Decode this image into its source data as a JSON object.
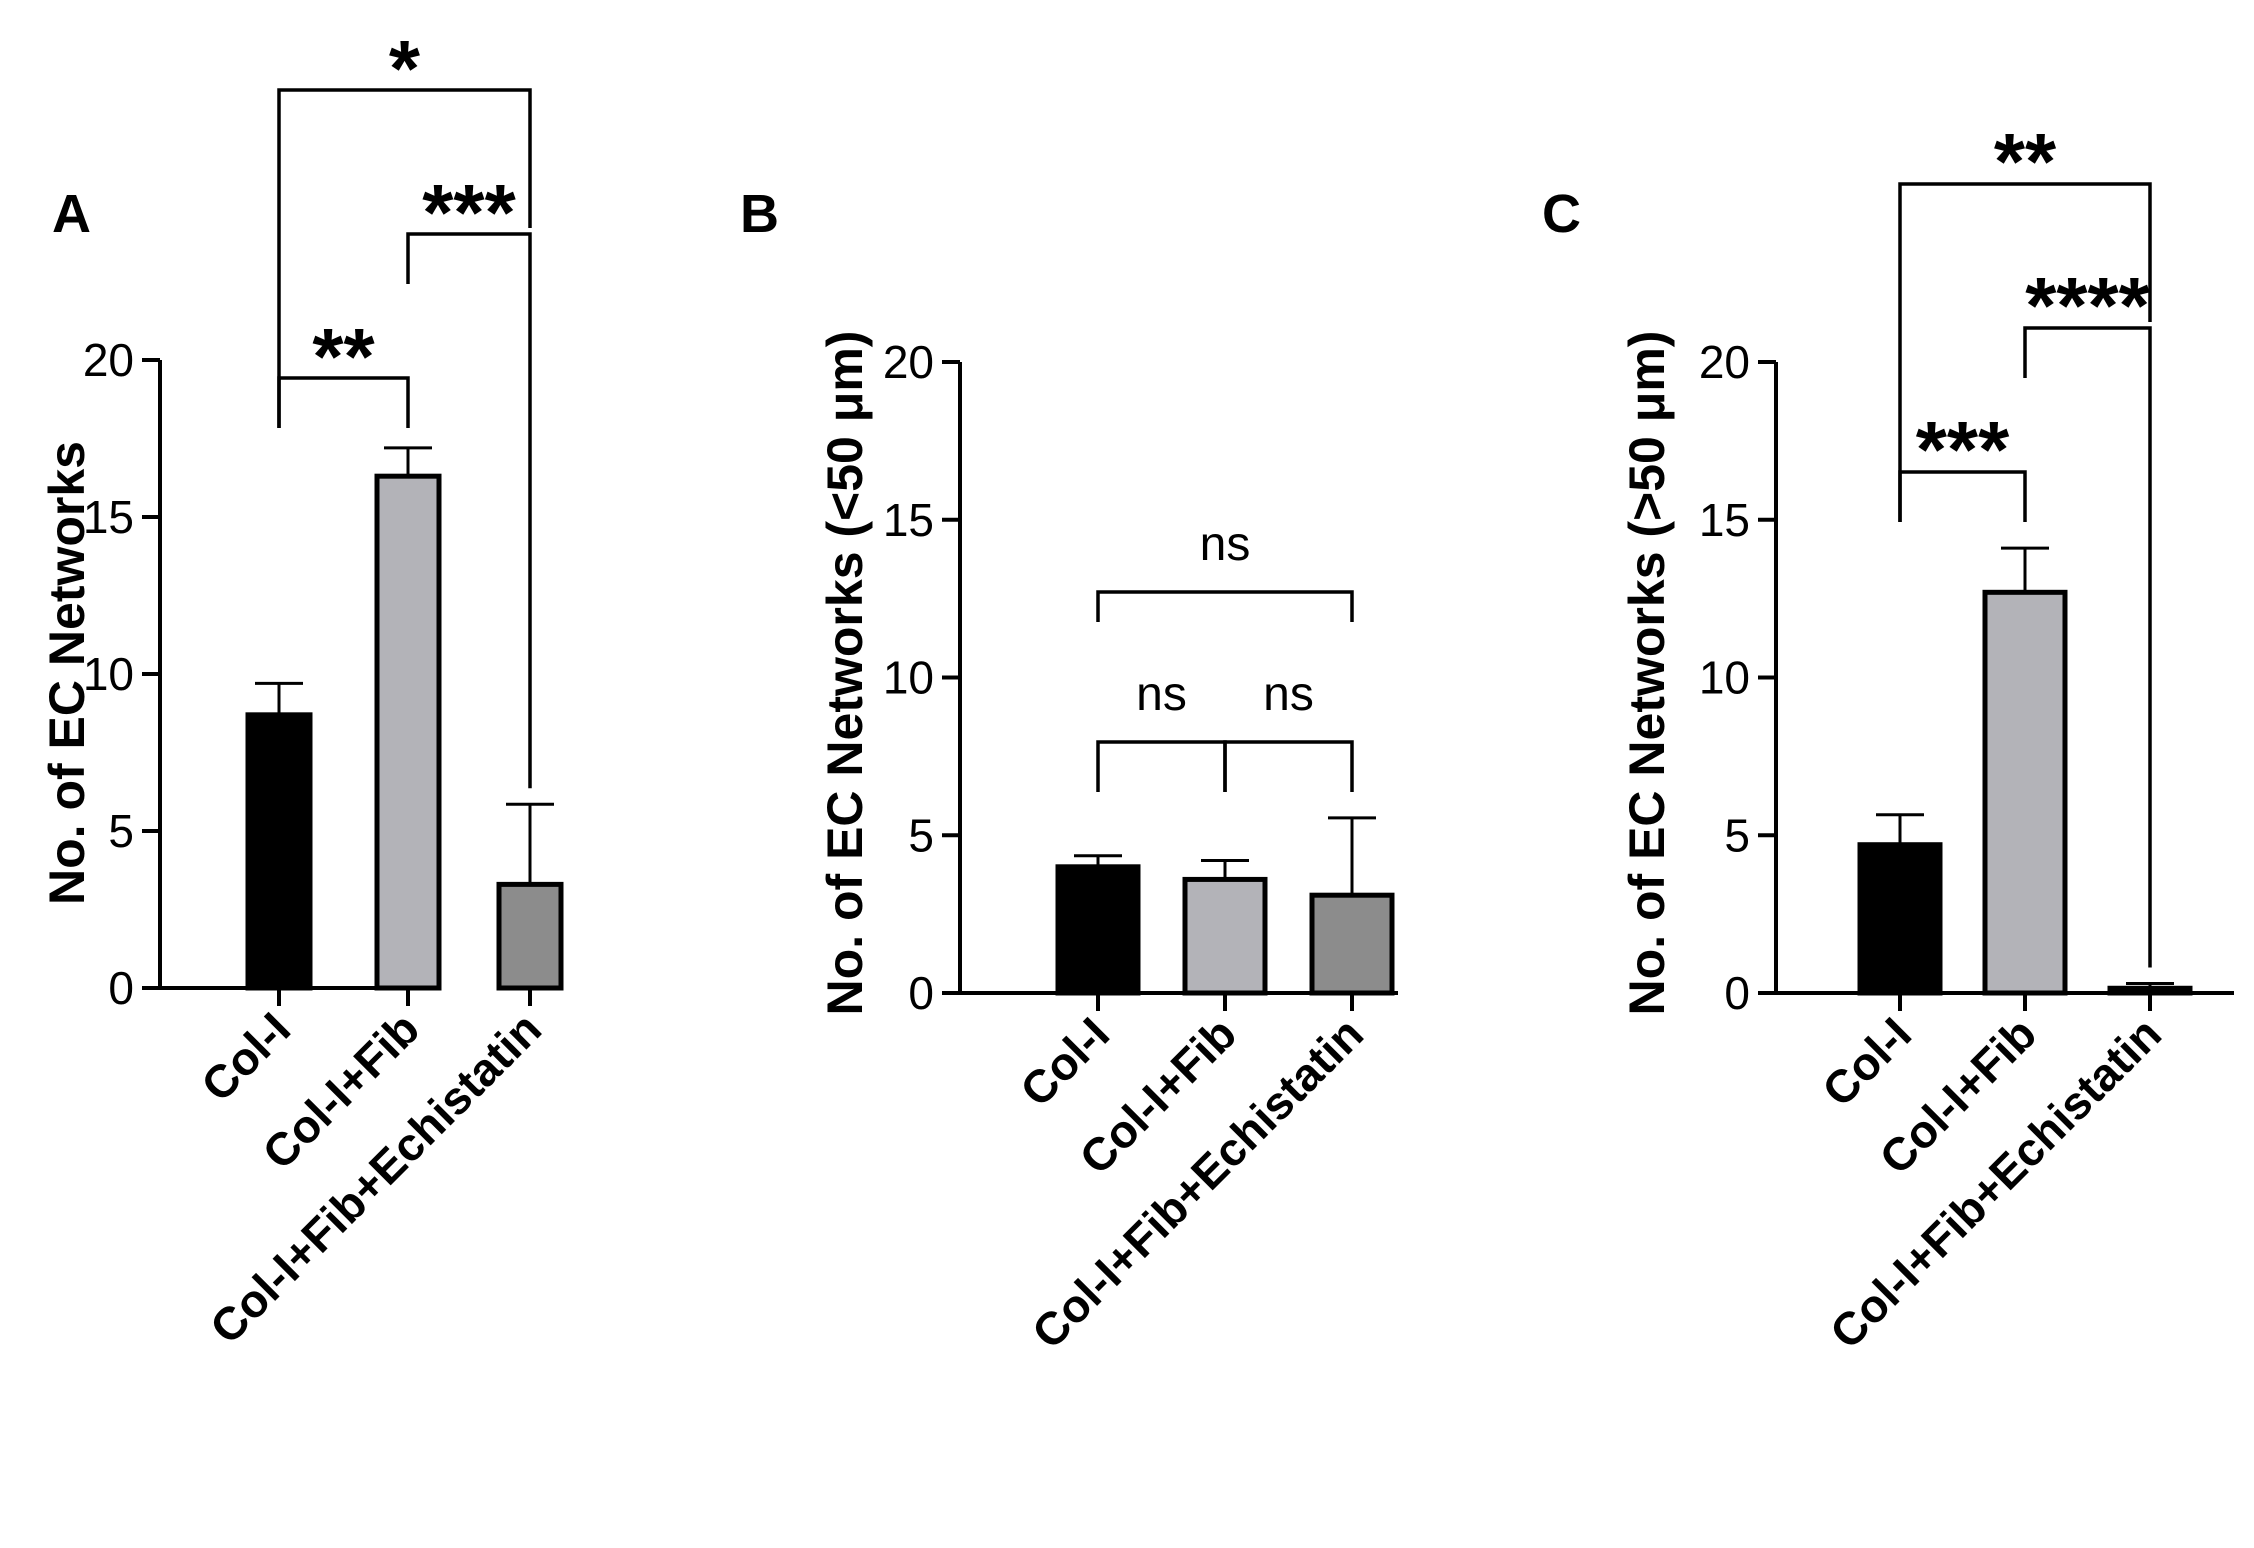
{
  "chart_data": [
    {
      "panel": "A",
      "type": "bar",
      "ylabel": "No. of EC Networks",
      "ylim": [
        0,
        20
      ],
      "yticks": [
        "0",
        "5",
        "10",
        "15",
        "20"
      ],
      "categories": [
        "Col-I",
        "Col-I+Fib",
        "Col-I+Fib+Echistatin"
      ],
      "values": [
        8.7,
        16.3,
        3.3
      ],
      "errors": [
        1.0,
        0.9,
        2.55
      ],
      "bar_colors": [
        "#000000",
        "#b3b3b8",
        "#8c8c8c"
      ],
      "comparisons": [
        {
          "from": 0,
          "to": 1,
          "label": "**"
        },
        {
          "from": 1,
          "to": 2,
          "label": "***"
        },
        {
          "from": 0,
          "to": 2,
          "label": "*"
        }
      ]
    },
    {
      "panel": "B",
      "type": "bar",
      "ylabel": "No. of EC Networks (<50 μm)",
      "ylim": [
        0,
        20
      ],
      "yticks": [
        "0",
        "5",
        "10",
        "15",
        "20"
      ],
      "categories": [
        "Col-I",
        "Col-I+Fib",
        "Col-I+Fib+Echistatin"
      ],
      "values": [
        4.0,
        3.6,
        3.1
      ],
      "errors": [
        0.35,
        0.6,
        2.45
      ],
      "bar_colors": [
        "#000000",
        "#b3b3b8",
        "#8c8c8c"
      ],
      "comparisons": [
        {
          "from": 0,
          "to": 1,
          "label": "ns"
        },
        {
          "from": 1,
          "to": 2,
          "label": "ns"
        },
        {
          "from": 0,
          "to": 2,
          "label": "ns"
        }
      ]
    },
    {
      "panel": "C",
      "type": "bar",
      "ylabel": "No. of EC Networks (>50 μm)",
      "ylim": [
        0,
        20
      ],
      "yticks": [
        "0",
        "5",
        "10",
        "15",
        "20"
      ],
      "categories": [
        "Col-I",
        "Col-I+Fib",
        "Col-I+Fib+Echistatin"
      ],
      "values": [
        4.7,
        12.7,
        0.15
      ],
      "errors": [
        0.95,
        1.4,
        0.15
      ],
      "bar_colors": [
        "#000000",
        "#b3b3b8",
        "#8c8c8c"
      ],
      "comparisons": [
        {
          "from": 0,
          "to": 1,
          "label": "***"
        },
        {
          "from": 1,
          "to": 2,
          "label": "****"
        },
        {
          "from": 0,
          "to": 2,
          "label": "**"
        }
      ]
    }
  ]
}
